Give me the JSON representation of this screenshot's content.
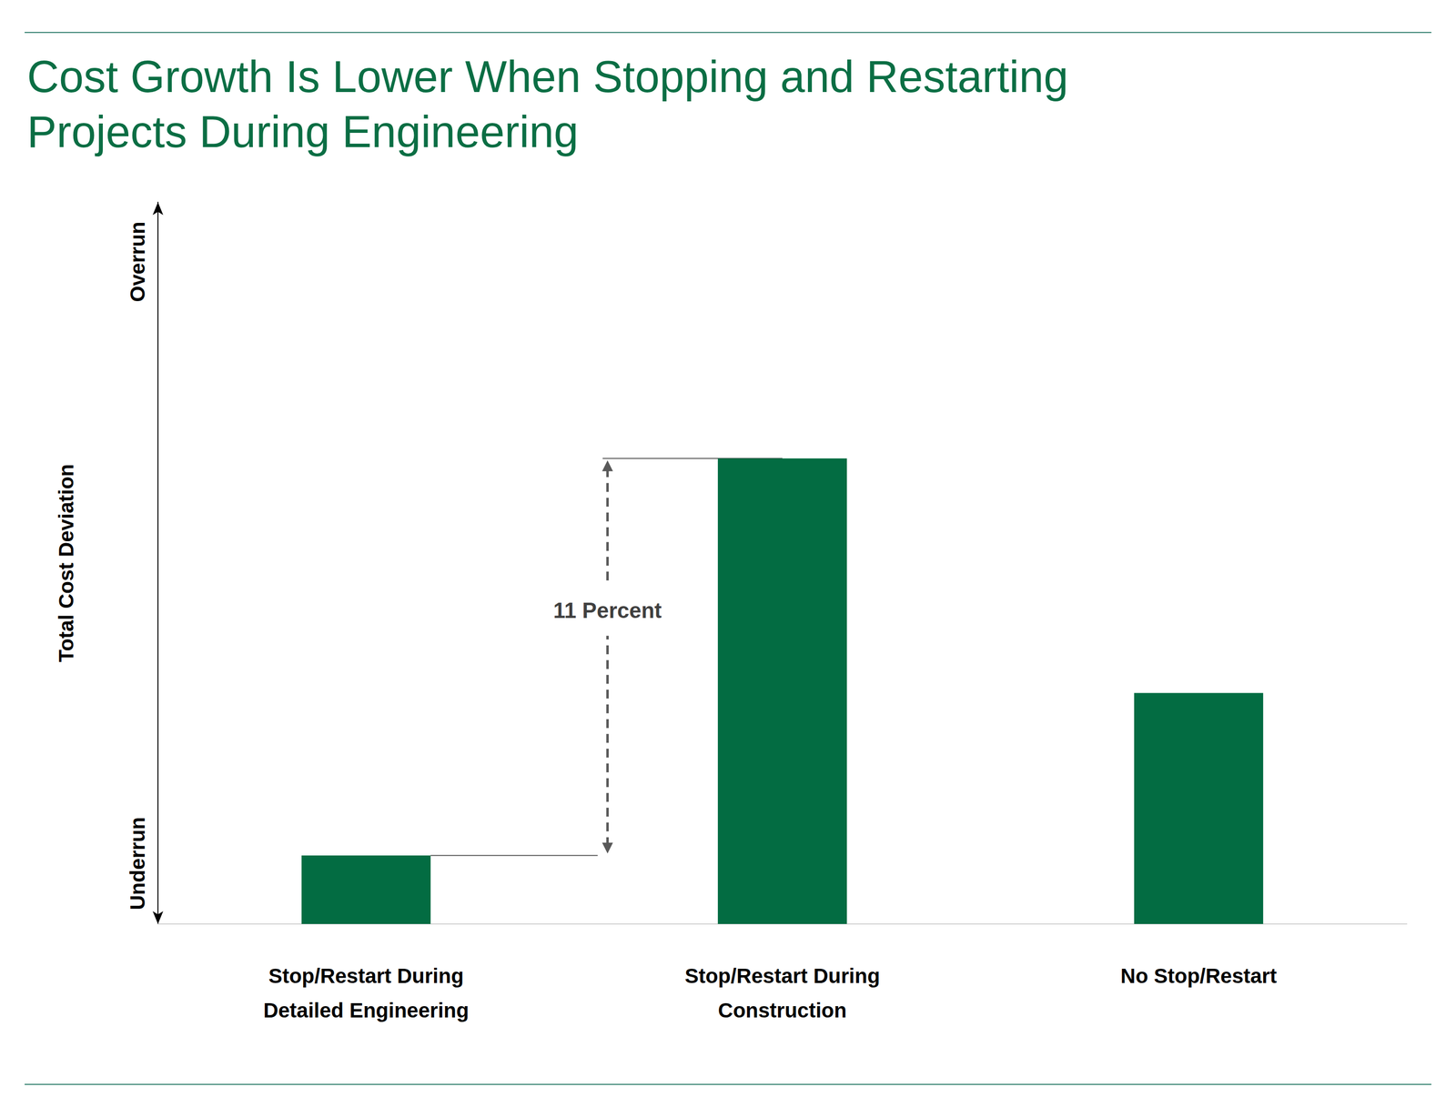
{
  "chart_data": {
    "type": "bar",
    "title": "Cost Growth Is Lower When Stopping and Restarting\nProjects During Engineering",
    "ylabel": "Total Cost Deviation",
    "y_axis_ends": {
      "low": "Underrun",
      "high": "Overrun"
    },
    "categories": [
      "Stop/Restart During\nDetailed Engineering",
      "Stop/Restart During\nConstruction",
      "No Stop/Restart"
    ],
    "values": [
      1.9,
      12.9,
      6.4
    ],
    "color": "#036c42",
    "ylim": [
      0,
      20
    ],
    "yticks": [],
    "tick_labels": "x",
    "grid": false,
    "annotations": [
      {
        "text": "11 Percent",
        "value": 11
      }
    ]
  }
}
